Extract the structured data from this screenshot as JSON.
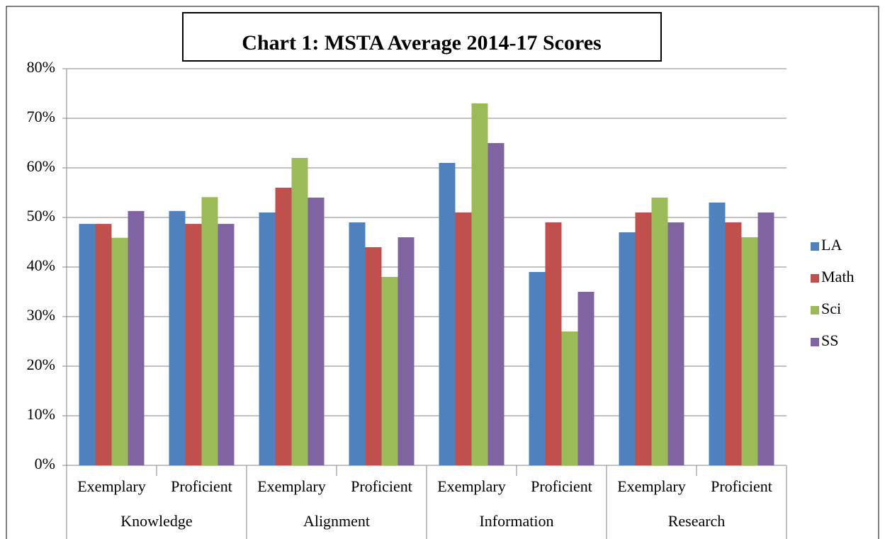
{
  "chart_data": {
    "type": "bar",
    "title": "Chart 1: MSTA Average 2014-17 Scores",
    "categories": [
      "Exemplary",
      "Proficient",
      "Exemplary",
      "Proficient",
      "Exemplary",
      "Proficient",
      "Exemplary",
      "Proficient"
    ],
    "groups": [
      "Knowledge",
      "Alignment",
      "Information",
      "Research"
    ],
    "series": [
      {
        "name": "LA",
        "color": "#4f81bd",
        "values": [
          48.7,
          51.3,
          51,
          49,
          61,
          39,
          47,
          53
        ]
      },
      {
        "name": "Math",
        "color": "#c0504d",
        "values": [
          48.7,
          48.7,
          56,
          44,
          51,
          49,
          51,
          49
        ]
      },
      {
        "name": "Sci",
        "color": "#9bbb59",
        "values": [
          45.9,
          54.1,
          62,
          38,
          73,
          27,
          54,
          46
        ]
      },
      {
        "name": "SS",
        "color": "#8064a2",
        "values": [
          51.3,
          48.7,
          54,
          46,
          65,
          35,
          49,
          51
        ]
      }
    ],
    "ylim": [
      0,
      80
    ],
    "yticks": [
      {
        "value": 0,
        "label": "0%"
      },
      {
        "value": 10,
        "label": "10%"
      },
      {
        "value": 20,
        "label": "20%"
      },
      {
        "value": 30,
        "label": "30%"
      },
      {
        "value": 40,
        "label": "40%"
      },
      {
        "value": 50,
        "label": "50%"
      },
      {
        "value": 60,
        "label": "60%"
      },
      {
        "value": 70,
        "label": "70%"
      },
      {
        "value": 80,
        "label": "80%"
      }
    ],
    "grid": true,
    "legend": "right"
  }
}
